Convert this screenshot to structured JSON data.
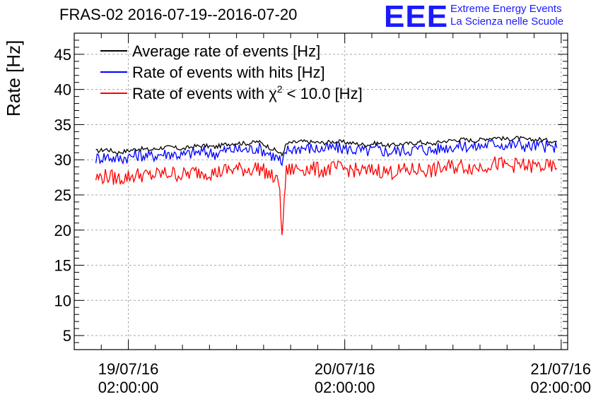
{
  "chart_data": {
    "type": "line",
    "title": "FRAS-02 2016-07-19--2016-07-20",
    "ylabel": "Rate [Hz]",
    "xlabel": "",
    "ylim": [
      3,
      48
    ],
    "xlim": [
      -0.25,
      2.03
    ],
    "yticks": [
      5,
      10,
      15,
      20,
      25,
      30,
      35,
      40,
      45
    ],
    "xticks": [
      {
        "value": 0,
        "line1": "19/07/16",
        "line2": "02:00:00"
      },
      {
        "value": 1,
        "line1": "20/07/16",
        "line2": "02:00:00"
      },
      {
        "value": 2,
        "line1": "21/07/16",
        "line2": "02:00:00"
      }
    ],
    "grid": true,
    "legend_position": "top-left",
    "series": [
      {
        "name": "Average rate of events [Hz]",
        "color": "#000000",
        "x": [
          -0.15,
          -0.1,
          -0.05,
          0.0,
          0.05,
          0.1,
          0.15,
          0.2,
          0.25,
          0.3,
          0.35,
          0.4,
          0.45,
          0.5,
          0.55,
          0.6,
          0.65,
          0.7,
          0.71,
          0.72,
          0.73,
          0.75,
          0.8,
          0.85,
          0.9,
          0.95,
          1.0,
          1.05,
          1.1,
          1.15,
          1.2,
          1.25,
          1.3,
          1.35,
          1.4,
          1.45,
          1.5,
          1.55,
          1.6,
          1.65,
          1.7,
          1.75,
          1.8,
          1.85,
          1.9,
          1.95,
          1.98
        ],
        "values": [
          31.2,
          31.5,
          31.0,
          31.3,
          31.6,
          31.4,
          31.7,
          31.8,
          31.5,
          31.9,
          32.0,
          31.8,
          32.2,
          32.4,
          32.3,
          32.6,
          31.8,
          31.0,
          30.6,
          31.5,
          32.2,
          32.4,
          32.6,
          32.5,
          32.4,
          32.6,
          32.5,
          32.3,
          32.1,
          32.4,
          32.0,
          32.2,
          32.3,
          32.5,
          32.2,
          32.6,
          32.8,
          32.9,
          32.7,
          33.0,
          33.2,
          32.9,
          33.1,
          32.8,
          32.9,
          32.7,
          32.6
        ]
      },
      {
        "name": "Rate of events with hits [Hz]",
        "color": "#0000ff",
        "x": [
          -0.15,
          -0.1,
          -0.05,
          0.0,
          0.05,
          0.1,
          0.15,
          0.2,
          0.25,
          0.3,
          0.35,
          0.4,
          0.45,
          0.5,
          0.55,
          0.6,
          0.65,
          0.7,
          0.71,
          0.72,
          0.73,
          0.75,
          0.8,
          0.85,
          0.9,
          0.95,
          1.0,
          1.05,
          1.1,
          1.15,
          1.2,
          1.25,
          1.3,
          1.35,
          1.4,
          1.45,
          1.5,
          1.55,
          1.6,
          1.65,
          1.7,
          1.75,
          1.8,
          1.85,
          1.9,
          1.95,
          1.98
        ],
        "values": [
          30.2,
          30.5,
          30.1,
          30.4,
          30.7,
          30.5,
          30.8,
          30.9,
          30.6,
          31.0,
          31.1,
          30.9,
          31.3,
          31.5,
          31.4,
          31.7,
          30.9,
          30.0,
          28.8,
          30.4,
          31.3,
          31.5,
          31.7,
          31.6,
          31.5,
          31.7,
          31.6,
          31.4,
          31.2,
          31.5,
          31.1,
          31.3,
          31.4,
          31.6,
          31.3,
          31.7,
          31.9,
          32.0,
          31.8,
          32.1,
          32.4,
          32.0,
          32.2,
          31.9,
          32.0,
          31.8,
          31.7
        ]
      },
      {
        "name": "Rate of events with χ² < 10.0 [Hz]",
        "color": "#ff0000",
        "x": [
          -0.15,
          -0.1,
          -0.05,
          0.0,
          0.05,
          0.1,
          0.15,
          0.2,
          0.25,
          0.3,
          0.35,
          0.4,
          0.45,
          0.5,
          0.55,
          0.6,
          0.65,
          0.7,
          0.71,
          0.72,
          0.73,
          0.75,
          0.8,
          0.85,
          0.9,
          0.95,
          1.0,
          1.05,
          1.1,
          1.15,
          1.2,
          1.25,
          1.3,
          1.35,
          1.4,
          1.45,
          1.5,
          1.55,
          1.6,
          1.65,
          1.7,
          1.75,
          1.8,
          1.85,
          1.9,
          1.95,
          1.98
        ],
        "values": [
          27.4,
          27.7,
          27.3,
          27.6,
          27.9,
          27.7,
          28.0,
          28.1,
          27.8,
          28.2,
          28.3,
          28.1,
          28.5,
          28.7,
          28.6,
          28.9,
          28.0,
          26.5,
          18.2,
          24.5,
          28.3,
          28.6,
          28.8,
          28.7,
          28.5,
          28.8,
          28.7,
          28.5,
          28.3,
          28.6,
          28.2,
          28.4,
          28.5,
          28.7,
          28.4,
          28.8,
          29.0,
          29.1,
          28.9,
          29.2,
          29.5,
          29.1,
          29.3,
          29.0,
          29.1,
          28.9,
          28.8
        ]
      }
    ],
    "legend": [
      {
        "label": "Average rate of events [Hz]"
      },
      {
        "label": "Rate of events with hits [Hz]"
      },
      {
        "prefix": "Rate of events with χ",
        "sup": "2",
        "suffix": " < 10.0 [Hz]"
      }
    ]
  },
  "logo": {
    "mark": "EEE",
    "line1": "Extreme Energy Events",
    "line2": "La Scienza nelle Scuole"
  }
}
